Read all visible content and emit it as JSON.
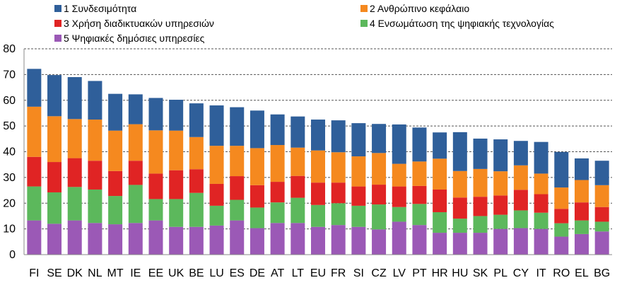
{
  "chart_data": {
    "type": "bar",
    "stacked": true,
    "title": "",
    "xlabel": "",
    "ylabel": "",
    "ylim": [
      0,
      80
    ],
    "yticks": [
      0,
      10,
      20,
      30,
      40,
      50,
      60,
      70,
      80
    ],
    "grid": true,
    "legend_position": "top",
    "categories": [
      "FI",
      "SE",
      "DK",
      "NL",
      "MT",
      "IE",
      "EE",
      "UK",
      "BE",
      "LU",
      "ES",
      "DE",
      "AT",
      "LT",
      "EU",
      "FR",
      "SI",
      "CZ",
      "LV",
      "PT",
      "HR",
      "HU",
      "SK",
      "PL",
      "CY",
      "IT",
      "RO",
      "EL",
      "BG"
    ],
    "series": [
      {
        "name": "5 Ψηφιακές δημόσιες υπηρεσίες",
        "color": "#9b59b6",
        "values": [
          13.3,
          12.0,
          13.3,
          12.3,
          11.8,
          12.3,
          13.3,
          10.8,
          10.8,
          11.3,
          13.3,
          10.3,
          12.3,
          12.3,
          10.8,
          11.5,
          10.8,
          9.8,
          12.8,
          11.5,
          8.5,
          8.5,
          8.5,
          10.0,
          10.3,
          10.0,
          7.0,
          8.0,
          9.0
        ]
      },
      {
        "name": "4 Ενσωμάτωση της ψηφιακής τεχνολογίας",
        "color": "#5cb85c",
        "values": [
          13.2,
          12.2,
          13.0,
          13.0,
          11.0,
          14.8,
          8.3,
          10.8,
          13.2,
          7.7,
          8.0,
          8.0,
          8.0,
          9.8,
          8.5,
          8.5,
          8.2,
          9.7,
          5.7,
          8.2,
          8.0,
          5.5,
          6.5,
          5.5,
          6.9,
          6.3,
          5.2,
          5.3,
          3.8
        ]
      },
      {
        "name": "3 Χρήση διαδικτυακών υπηρεσιών",
        "color": "#e02424",
        "values": [
          11.5,
          11.8,
          11.2,
          11.2,
          9.7,
          9.4,
          9.9,
          11.2,
          9.2,
          8.5,
          9.2,
          8.7,
          8.0,
          8.5,
          8.7,
          8.0,
          7.5,
          7.7,
          8.0,
          7.0,
          8.8,
          8.2,
          7.5,
          7.5,
          8.0,
          7.2,
          5.6,
          7.0,
          5.7
        ]
      },
      {
        "name": "2 Ανθρώπινο κεφάλαιο",
        "color": "#f5891f",
        "values": [
          19.5,
          17.8,
          15.2,
          16.0,
          15.7,
          14.2,
          16.8,
          15.4,
          12.5,
          14.8,
          11.8,
          14.4,
          14.3,
          11.0,
          12.5,
          11.8,
          11.7,
          12.3,
          8.8,
          9.5,
          12.0,
          10.3,
          10.8,
          9.4,
          9.5,
          8.0,
          8.3,
          8.7,
          8.5
        ]
      },
      {
        "name": "1 Συνδεσιμότητα",
        "color": "#2f5f9a",
        "values": [
          14.7,
          16.0,
          16.3,
          15.0,
          14.3,
          11.6,
          12.6,
          12.0,
          13.1,
          15.7,
          15.0,
          14.6,
          11.9,
          12.1,
          12.0,
          12.4,
          12.9,
          11.3,
          15.3,
          13.2,
          10.2,
          15.1,
          11.8,
          12.4,
          9.5,
          12.3,
          13.8,
          8.4,
          9.5
        ]
      }
    ],
    "legend": [
      {
        "label": "1 Συνδεσιμότητα",
        "color": "#2f5f9a"
      },
      {
        "label": "2 Ανθρώπινο κεφάλαιο",
        "color": "#f5891f"
      },
      {
        "label": "3 Χρήση διαδικτυακών υπηρεσιών",
        "color": "#e02424"
      },
      {
        "label": "4 Ενσωμάτωση της ψηφιακής τεχνολογίας",
        "color": "#5cb85c"
      },
      {
        "label": "5 Ψηφιακές δημόσιες υπηρεσίες",
        "color": "#9b59b6"
      }
    ]
  }
}
